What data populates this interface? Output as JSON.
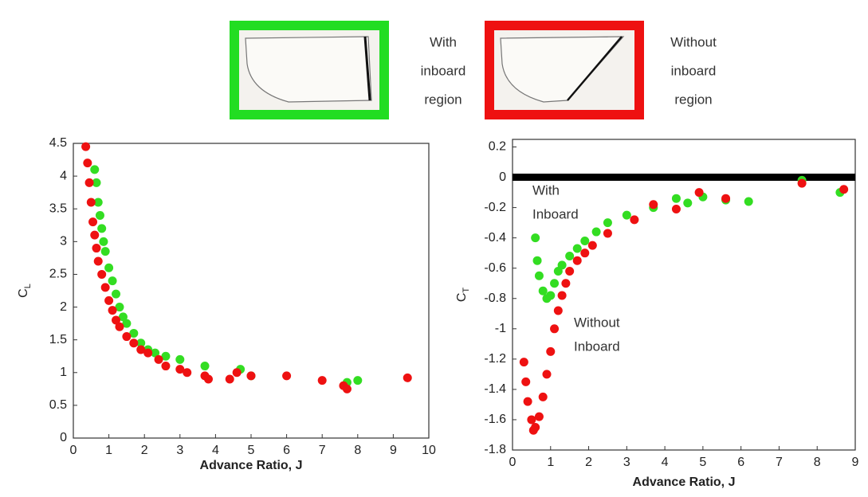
{
  "legend": [
    {
      "lines": [
        "With",
        "inboard",
        "region"
      ],
      "color": "#33dd22"
    },
    {
      "lines": [
        "Without",
        "inboard",
        "region"
      ],
      "color": "#ee1111"
    }
  ],
  "chart_data": [
    {
      "type": "scatter",
      "y_label": "C",
      "y_label_sub": "L",
      "x_label": "Advance Ratio, J",
      "xlim": [
        0,
        10
      ],
      "ylim": [
        0,
        4.5
      ],
      "xticks": [
        0,
        1,
        2,
        3,
        4,
        5,
        6,
        7,
        8,
        9,
        10
      ],
      "yticks": [
        0,
        0.5,
        1,
        1.5,
        2,
        2.5,
        3,
        3.5,
        4,
        4.5
      ],
      "series": [
        {
          "color": "#33dd22",
          "x": [
            0.6,
            0.65,
            0.7,
            0.75,
            0.8,
            0.85,
            0.9,
            1.0,
            1.1,
            1.2,
            1.3,
            1.4,
            1.5,
            1.7,
            1.9,
            2.1,
            2.3,
            2.6,
            3.0,
            3.7,
            4.7,
            5.0,
            7.7,
            8.0
          ],
          "values": [
            4.1,
            3.9,
            3.6,
            3.4,
            3.2,
            3.0,
            2.85,
            2.6,
            2.4,
            2.2,
            2.0,
            1.85,
            1.75,
            1.6,
            1.45,
            1.35,
            1.3,
            1.25,
            1.2,
            1.1,
            1.05,
            0.95,
            0.85,
            0.88
          ]
        },
        {
          "color": "#ee1111",
          "x": [
            0.35,
            0.4,
            0.45,
            0.5,
            0.55,
            0.6,
            0.65,
            0.7,
            0.8,
            0.9,
            1.0,
            1.1,
            1.2,
            1.3,
            1.5,
            1.7,
            1.9,
            2.1,
            2.4,
            2.6,
            3.0,
            3.2,
            3.7,
            3.8,
            4.4,
            4.6,
            5.0,
            6.0,
            7.0,
            7.6,
            7.7,
            9.4
          ],
          "values": [
            4.45,
            4.2,
            3.9,
            3.6,
            3.3,
            3.1,
            2.9,
            2.7,
            2.5,
            2.3,
            2.1,
            1.95,
            1.8,
            1.7,
            1.55,
            1.45,
            1.35,
            1.3,
            1.2,
            1.1,
            1.05,
            1.0,
            0.95,
            0.9,
            0.9,
            1.0,
            0.95,
            0.95,
            0.88,
            0.8,
            0.75,
            0.92
          ]
        }
      ]
    },
    {
      "type": "scatter",
      "y_label": "C",
      "y_label_sub": "T",
      "x_label": "Advance Ratio, J",
      "xlim": [
        0,
        9
      ],
      "ylim": [
        -1.8,
        0.25
      ],
      "xticks": [
        0,
        1,
        2,
        3,
        4,
        5,
        6,
        7,
        8,
        9
      ],
      "yticks": [
        0.2,
        0,
        -0.2,
        -0.4,
        -0.6,
        -0.8,
        -1,
        -1.2,
        -1.4,
        -1.6,
        -1.8
      ],
      "hline": 0,
      "annotations": [
        [
          "With",
          "Inboard"
        ],
        [
          "Without",
          "Inboard"
        ]
      ],
      "series": [
        {
          "color": "#33dd22",
          "x": [
            0.6,
            0.65,
            0.7,
            0.8,
            0.9,
            1.0,
            1.1,
            1.2,
            1.3,
            1.5,
            1.7,
            1.9,
            2.2,
            2.5,
            3.0,
            3.7,
            4.3,
            4.6,
            5.0,
            5.6,
            6.2,
            7.6,
            8.6
          ],
          "values": [
            -0.4,
            -0.55,
            -0.65,
            -0.75,
            -0.8,
            -0.78,
            -0.7,
            -0.62,
            -0.58,
            -0.52,
            -0.47,
            -0.42,
            -0.36,
            -0.3,
            -0.25,
            -0.2,
            -0.14,
            -0.17,
            -0.13,
            -0.15,
            -0.16,
            -0.02,
            -0.1
          ]
        },
        {
          "color": "#ee1111",
          "x": [
            0.3,
            0.35,
            0.4,
            0.5,
            0.55,
            0.6,
            0.7,
            0.8,
            0.9,
            1.0,
            1.1,
            1.2,
            1.3,
            1.4,
            1.5,
            1.7,
            1.9,
            2.1,
            2.5,
            3.2,
            3.7,
            4.3,
            4.9,
            5.6,
            7.6,
            8.7
          ],
          "values": [
            -1.22,
            -1.35,
            -1.48,
            -1.6,
            -1.67,
            -1.65,
            -1.58,
            -1.45,
            -1.3,
            -1.15,
            -1.0,
            -0.88,
            -0.78,
            -0.7,
            -0.62,
            -0.55,
            -0.5,
            -0.45,
            -0.37,
            -0.28,
            -0.18,
            -0.21,
            -0.1,
            -0.14,
            -0.04,
            -0.08
          ]
        }
      ]
    }
  ]
}
